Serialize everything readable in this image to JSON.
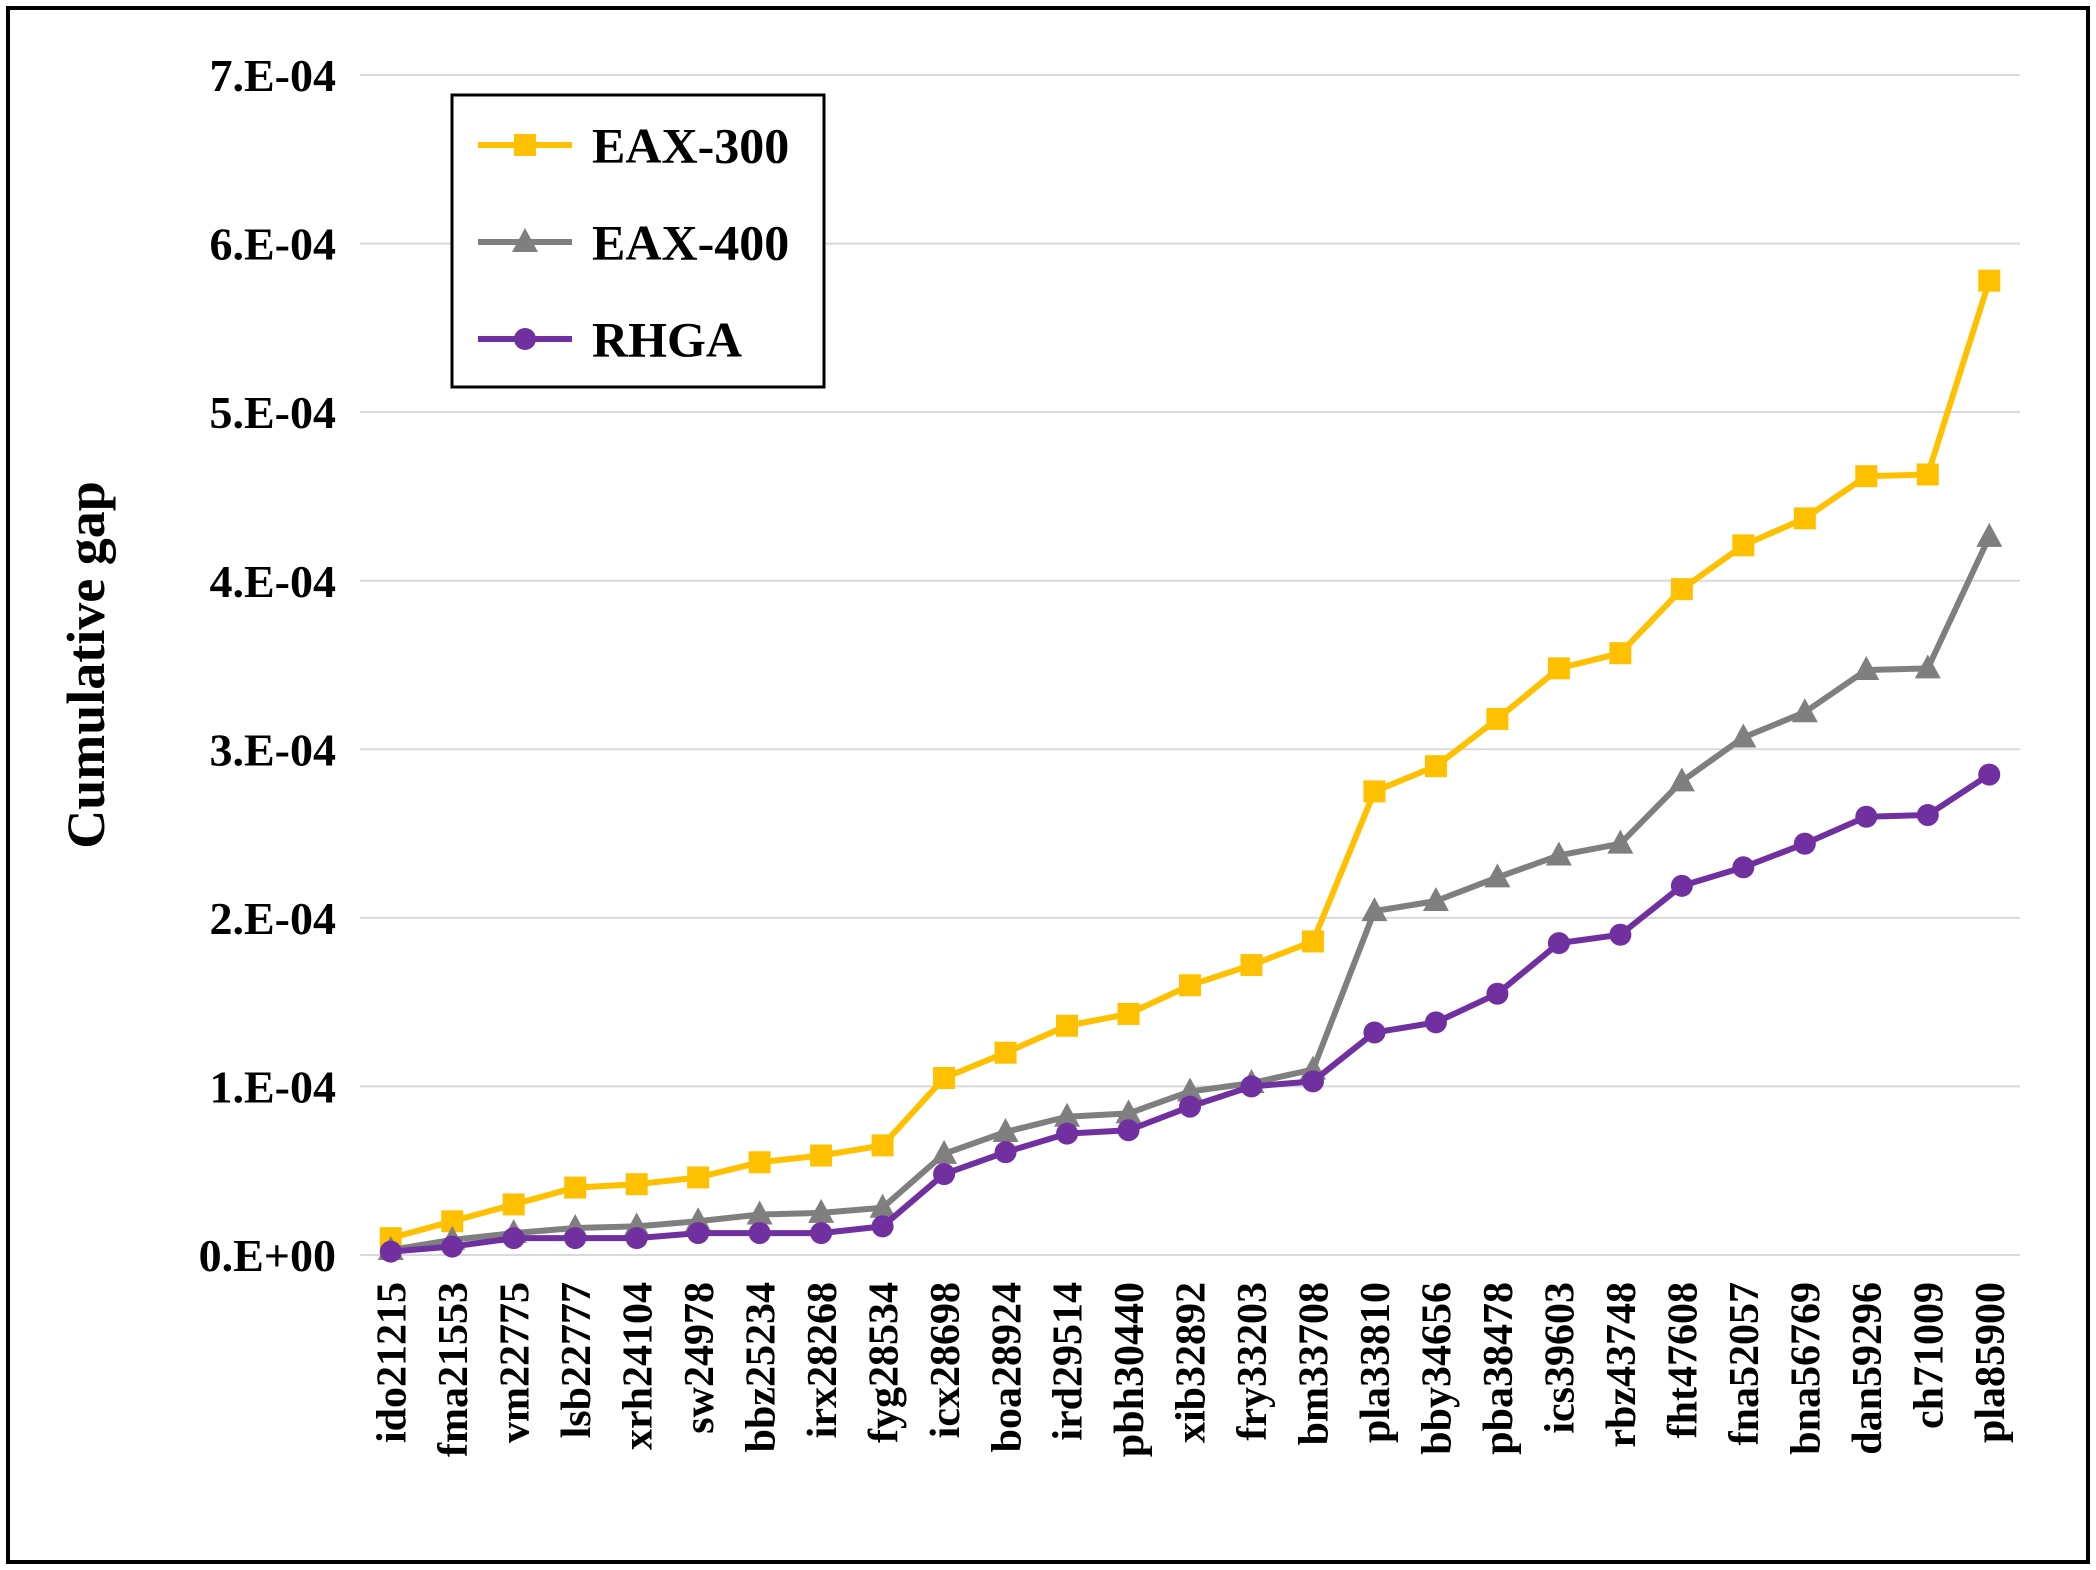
{
  "chart_data": {
    "type": "line",
    "title": "",
    "xlabel": "",
    "ylabel": "Cumulative gap",
    "ylim": [
      0,
      0.0007
    ],
    "ytick_labels": [
      "0.E+00",
      "1.E-04",
      "2.E-04",
      "3.E-04",
      "4.E-04",
      "5.E-04",
      "6.E-04",
      "7.E-04"
    ],
    "grid": true,
    "legend_position": "top-left",
    "categories": [
      "ido21215",
      "fma21553",
      "vm22775",
      "lsb22777",
      "xrh24104",
      "sw24978",
      "bbz25234",
      "irx28268",
      "fyg28534",
      "icx28698",
      "boa28924",
      "ird29514",
      "pbh30440",
      "xib32892",
      "fry33203",
      "bm33708",
      "pla33810",
      "bby34656",
      "pba38478",
      "ics39603",
      "rbz43748",
      "fht47608",
      "fna52057",
      "bna56769",
      "dan59296",
      "ch71009",
      "pla85900"
    ],
    "series": [
      {
        "name": "EAX-300",
        "color": "#FFC000",
        "marker": "square",
        "values": [
          1e-05,
          2e-05,
          3e-05,
          4e-05,
          4.2e-05,
          4.6e-05,
          5.5e-05,
          5.9e-05,
          6.5e-05,
          0.000105,
          0.00012,
          0.000136,
          0.000143,
          0.00016,
          0.000172,
          0.000186,
          0.000275,
          0.00029,
          0.000318,
          0.000348,
          0.000357,
          0.000395,
          0.000421,
          0.000437,
          0.000462,
          0.000463,
          0.000578
        ]
      },
      {
        "name": "EAX-400",
        "color": "#7F7F7F",
        "marker": "triangle",
        "values": [
          3e-06,
          9e-06,
          1.3e-05,
          1.6e-05,
          1.7e-05,
          2e-05,
          2.4e-05,
          2.5e-05,
          2.8e-05,
          6e-05,
          7.3e-05,
          8.2e-05,
          8.4e-05,
          9.7e-05,
          0.000102,
          0.00011,
          0.000204,
          0.00021,
          0.000224,
          0.000237,
          0.000244,
          0.000281,
          0.000307,
          0.000322,
          0.000347,
          0.000348,
          0.000426
        ]
      },
      {
        "name": "RHGA",
        "color": "#7030A0",
        "marker": "circle",
        "values": [
          2e-06,
          5e-06,
          1e-05,
          1e-05,
          1e-05,
          1.3e-05,
          1.3e-05,
          1.3e-05,
          1.7e-05,
          4.8e-05,
          6.1e-05,
          7.2e-05,
          7.4e-05,
          8.8e-05,
          0.0001,
          0.000103,
          0.000132,
          0.000138,
          0.000155,
          0.000185,
          0.00019,
          0.000219,
          0.00023,
          0.000244,
          0.00026,
          0.000261,
          0.000285
        ]
      }
    ]
  }
}
